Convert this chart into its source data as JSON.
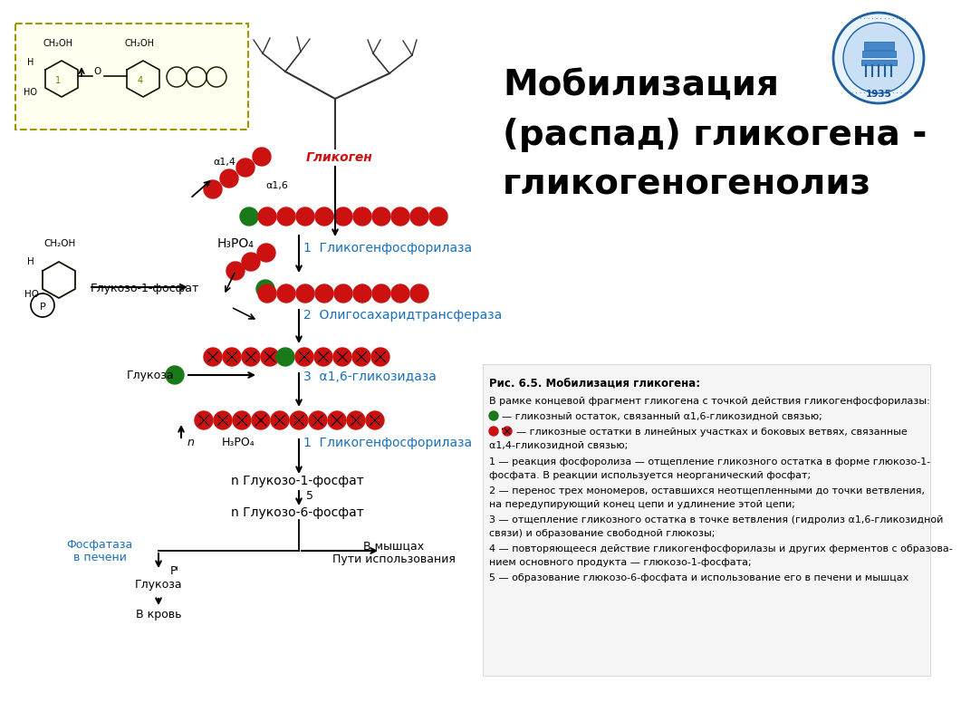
{
  "bg_color": "#ffffff",
  "red_color": "#cc1111",
  "green_color": "#1a7a1a",
  "dark_red": "#8b0000",
  "blue_color": "#1a6fbb",
  "title_line1": "Мобилизация",
  "title_line2": "(распад) гликогена -",
  "title_line3": "гликогеногенолиз",
  "glycogen_label": "Гликоген",
  "h3po4_label": "H₃PO₄",
  "enzyme1_label": "1  Гликогенфосфорилаза",
  "product1_label": "Глукозо-1-фосфат",
  "enzyme2_label": "2  Олигосахаридтрансфераза",
  "enzyme3_label": "3  α1,6-гликозидаза",
  "glucose_label": "Глукоза",
  "enzyme4_label": "1  Гликогенфосфорилаза",
  "product2_label": "n Глукозо-1-фосфат",
  "product3_label": "n Глукозо-6-фосфат",
  "phosphatase_label1": "Фосфатаза",
  "phosphatase_label2": "в печени",
  "pi_label": "Pᴵ",
  "liver_glucose": "Глукоза",
  "blood_label": "В кровь",
  "muscles_label": "В мышцах",
  "use_label": "Пути использования",
  "alpha14_label": "α1,4",
  "alpha16_label": "α1,6",
  "reaction5_label": "5",
  "n_label": "n",
  "fig_caption_bold": "Рис. 6.5. Мобилизация гликогена:",
  "cap_line0": "В рамке концевой фрагмент гликогена с точкой действия гликогенфосфорилазы:",
  "cap_green": "— гликозный остаток, связанный α1,6-гликозидной связью;",
  "cap_red": "— гликозные остатки в линейных участках и боковых ветвях, связанные",
  "cap_red2": "α1,4-гликозидной связью;",
  "cap_1": "1 — реакция фосфоролиза — отщепление гликозного остатка в форме глюкозо-1-",
  "cap_1b": "фосфата. В реакции используется неорганический фосфат;",
  "cap_2": "2 — перенос трех мономеров, оставшихся неотщепленными до точки ветвления,",
  "cap_2b": "на передупирующий конец цепи и удлинение этой цепи;",
  "cap_3": "3 — отщепление гликозного остатка в точке ветвления (гидролиз α1,6-гликозидной",
  "cap_3b": "связи) и образование свободной глюкозы;",
  "cap_4": "4 — повторяющееся действие гликогенфосфорилазы и других ферментов с образова-",
  "cap_4b": "нием основного продукта — глюкозо-1-фосфата;",
  "cap_5": "5 — образование глюкозо-6-фосфата и использование его в печени и мышцах"
}
